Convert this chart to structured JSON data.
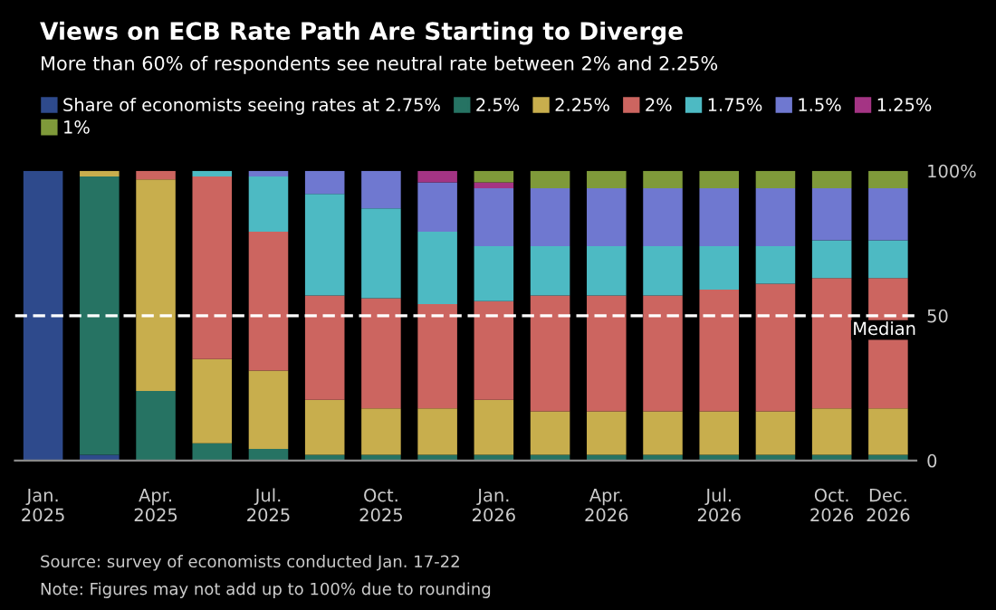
{
  "chart_data": {
    "type": "bar",
    "stacked": true,
    "title": "Views on ECB Rate Path Are Starting to Diverge",
    "subtitle": "More than 60% of respondents see neutral rate between 2% and 2.25%",
    "categories": [
      "Jan.\n2025",
      null,
      "Apr.\n2025",
      null,
      "Jul.\n2025",
      null,
      "Oct.\n2025",
      null,
      "Jan.\n2026",
      null,
      "Apr.\n2026",
      null,
      "Jul.\n2026",
      null,
      "Oct.\n2026",
      "Dec.\n2026"
    ],
    "series": [
      {
        "name": "Share of economists seeing rates at 2.75%",
        "color": "#2e4a8c",
        "values": [
          100,
          2,
          null,
          null,
          null,
          null,
          null,
          null,
          null,
          null,
          null,
          null,
          null,
          null,
          null,
          null
        ]
      },
      {
        "name": "2.5%",
        "color": "#267363",
        "values": [
          null,
          96,
          24,
          6,
          4,
          2,
          2,
          2,
          2,
          2,
          2,
          2,
          2,
          2,
          2,
          2
        ]
      },
      {
        "name": "2.25%",
        "color": "#c8ae4d",
        "values": [
          null,
          2,
          73,
          29,
          27,
          19,
          16,
          16,
          19,
          15,
          15,
          15,
          15,
          15,
          16,
          16
        ]
      },
      {
        "name": "2%",
        "color": "#cc6560",
        "values": [
          null,
          null,
          3,
          63,
          48,
          36,
          38,
          36,
          34,
          40,
          40,
          40,
          42,
          44,
          45,
          45
        ]
      },
      {
        "name": "1.75%",
        "color": "#4dbac3",
        "values": [
          null,
          null,
          null,
          2,
          19,
          35,
          31,
          25,
          19,
          17,
          17,
          17,
          15,
          13,
          13,
          13
        ]
      },
      {
        "name": "1.5%",
        "color": "#6f78d0",
        "values": [
          null,
          null,
          null,
          null,
          2,
          8,
          13,
          17,
          20,
          20,
          20,
          20,
          20,
          20,
          18,
          18
        ]
      },
      {
        "name": "1.25%",
        "color": "#a43484",
        "values": [
          null,
          null,
          null,
          null,
          null,
          null,
          null,
          4,
          2,
          null,
          null,
          null,
          null,
          null,
          null,
          null
        ]
      },
      {
        "name": "1%",
        "color": "#7f9a3a",
        "values": [
          null,
          null,
          null,
          null,
          null,
          null,
          null,
          null,
          4,
          6,
          6,
          6,
          6,
          6,
          6,
          6
        ]
      }
    ],
    "ylim": [
      0,
      100
    ],
    "yticks": [
      0,
      50,
      {
        "value": 100,
        "label": "100%"
      }
    ],
    "legend": "top",
    "ref_lines": [
      {
        "axis": "y",
        "value": 50,
        "label": "Median",
        "color": "#ffffff",
        "line_style": "dashed"
      }
    ],
    "annotations": [
      "Source: survey of economists conducted Jan. 17-22",
      "Note: Figures may not add up to 100% due to rounding"
    ]
  }
}
